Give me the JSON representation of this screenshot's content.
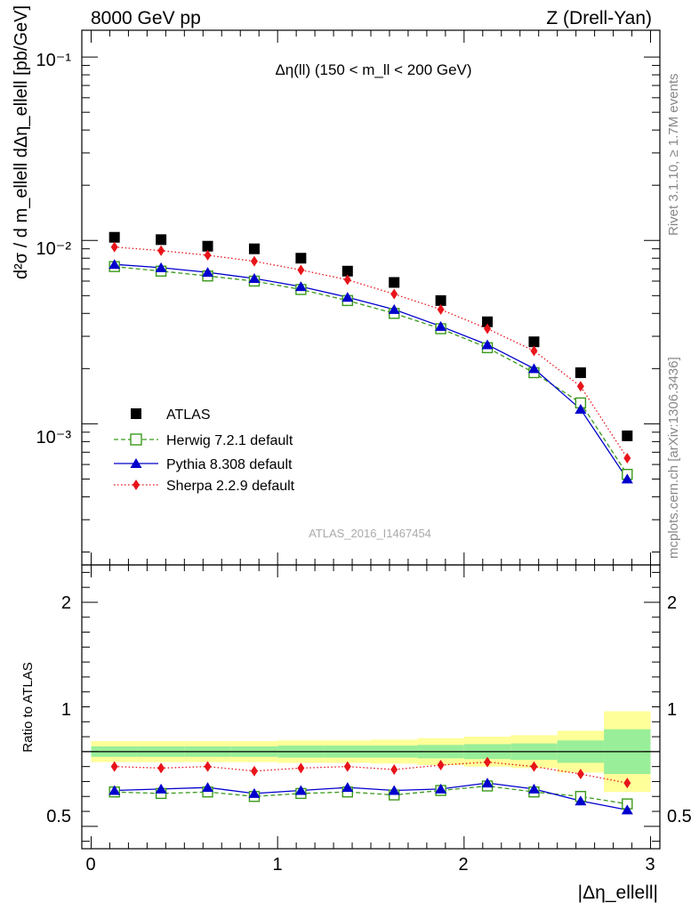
{
  "header": {
    "left": "8000 GeV pp",
    "right": "Z (Drell-Yan)"
  },
  "side_text": {
    "rivet": "Rivet 3.1.10, ≥ 1.7M events",
    "mcplots": "mcplots.cern.ch [arXiv:1306.3436]"
  },
  "chart_data": [
    {
      "type": "scatter",
      "title": "Δη(ll) (150 < m_ll < 200 GeV)",
      "ylabel": "d²σ / d m_ellell dΔη_ellell [pb/GeV]",
      "yscale": "log",
      "xlim": [
        -0.05,
        3.05
      ],
      "ylim": [
        0.00017,
        0.14
      ],
      "y_ticks": [
        "10⁻³",
        "10⁻²",
        "10⁻¹"
      ],
      "watermark": "ATLAS_2016_I1467454",
      "legend_position": "bottom-left",
      "x": [
        0.125,
        0.375,
        0.625,
        0.875,
        1.125,
        1.375,
        1.625,
        1.875,
        2.125,
        2.375,
        2.625,
        2.875
      ],
      "series": [
        {
          "name": "ATLAS",
          "style": "data",
          "color": "#000000",
          "marker": "square",
          "values": [
            0.0104,
            0.0101,
            0.0093,
            0.009,
            0.008,
            0.0068,
            0.0059,
            0.0047,
            0.0036,
            0.0028,
            0.0019,
            0.00086
          ]
        },
        {
          "name": "Herwig 7.2.1 default",
          "style": "dashed",
          "color": "#3a9a1a",
          "marker": "open-square",
          "values": [
            0.0072,
            0.0068,
            0.0064,
            0.006,
            0.0054,
            0.0047,
            0.004,
            0.0033,
            0.0026,
            0.0019,
            0.0013,
            0.00053
          ]
        },
        {
          "name": "Pythia 8.308 default",
          "style": "solid",
          "color": "#0000cc",
          "marker": "triangle",
          "values": [
            0.0074,
            0.0071,
            0.0067,
            0.0062,
            0.0056,
            0.0049,
            0.0042,
            0.0034,
            0.0027,
            0.002,
            0.0012,
            0.0005
          ]
        },
        {
          "name": "Sherpa 2.2.9 default",
          "style": "dotted",
          "color": "#e8141a",
          "marker": "diamond",
          "values": [
            0.0092,
            0.0088,
            0.0083,
            0.0077,
            0.0069,
            0.0061,
            0.0051,
            0.0042,
            0.0033,
            0.0025,
            0.0016,
            0.00065
          ]
        }
      ]
    },
    {
      "type": "line",
      "ylabel": "Ratio to ATLAS",
      "xlabel": "|Δη_ellell|",
      "xlim": [
        -0.05,
        3.05
      ],
      "ylim": [
        0.35,
        2.25
      ],
      "x_ticks": [
        "0",
        "1",
        "2",
        "3"
      ],
      "y_ticks": [
        "0.5",
        "1",
        "2"
      ],
      "x": [
        0.125,
        0.375,
        0.625,
        0.875,
        1.125,
        1.375,
        1.625,
        1.875,
        2.125,
        2.375,
        2.625,
        2.875
      ],
      "reference": 1,
      "bands": {
        "edges": [
          0,
          0.25,
          0.5,
          0.75,
          1.0,
          1.25,
          1.5,
          1.75,
          2.0,
          2.25,
          2.5,
          2.75,
          3.0
        ],
        "inner": [
          0.035,
          0.035,
          0.035,
          0.035,
          0.04,
          0.04,
          0.04,
          0.045,
          0.05,
          0.055,
          0.075,
          0.15
        ],
        "outer": [
          0.07,
          0.07,
          0.07,
          0.07,
          0.075,
          0.075,
          0.08,
          0.09,
          0.1,
          0.11,
          0.14,
          0.27
        ],
        "inner_color": "#99ee99",
        "outer_color": "#ffff99"
      },
      "series": [
        {
          "name": "Herwig 7.2.1 default",
          "color": "#3a9a1a",
          "style": "dashed",
          "marker": "open-square",
          "values": [
            0.73,
            0.72,
            0.73,
            0.7,
            0.72,
            0.73,
            0.71,
            0.74,
            0.77,
            0.73,
            0.7,
            0.65
          ]
        },
        {
          "name": "Pythia 8.308 default",
          "color": "#0000cc",
          "style": "solid",
          "marker": "triangle",
          "values": [
            0.74,
            0.75,
            0.76,
            0.72,
            0.74,
            0.76,
            0.74,
            0.75,
            0.79,
            0.75,
            0.67,
            0.61
          ]
        },
        {
          "name": "Sherpa 2.2.9 default",
          "color": "#e8141a",
          "style": "dotted",
          "marker": "diamond",
          "values": [
            0.9,
            0.89,
            0.9,
            0.87,
            0.89,
            0.9,
            0.88,
            0.91,
            0.93,
            0.9,
            0.85,
            0.79
          ]
        }
      ]
    }
  ]
}
